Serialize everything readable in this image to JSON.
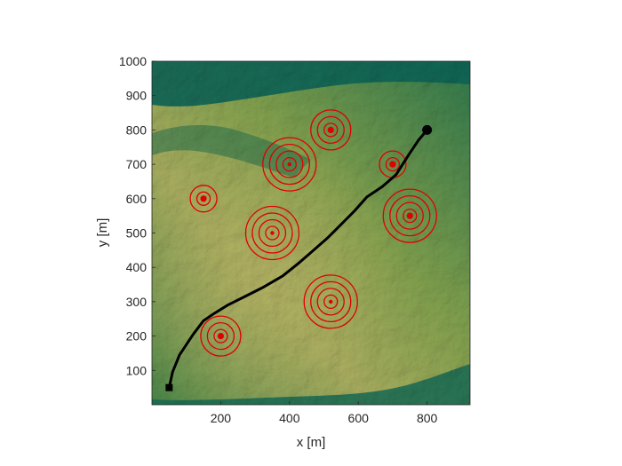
{
  "chart_data": {
    "type": "scatter",
    "title": "",
    "xlabel": "x [m]",
    "ylabel": "y [m]",
    "xlim": [
      0,
      925
    ],
    "ylim": [
      0,
      1000
    ],
    "x_ticks": [
      200,
      400,
      600,
      800
    ],
    "y_ticks": [
      100,
      200,
      300,
      400,
      500,
      600,
      700,
      800,
      900,
      1000
    ],
    "background": "terrain elevation shaded relief",
    "colors": {
      "terrain_low": "#0f7f6e",
      "terrain_mid": "#7fbf55",
      "terrain_high": "#e3e27e",
      "threat": "#e00000",
      "path": "#000000"
    },
    "threats": [
      {
        "x": 150,
        "y": 600,
        "rings": 2,
        "center_size": "large"
      },
      {
        "x": 200,
        "y": 200,
        "rings": 3,
        "center_size": "large"
      },
      {
        "x": 350,
        "y": 500,
        "rings": 4,
        "center_size": "small"
      },
      {
        "x": 400,
        "y": 700,
        "rings": 4,
        "center_size": "small"
      },
      {
        "x": 520,
        "y": 800,
        "rings": 3,
        "center_size": "large"
      },
      {
        "x": 520,
        "y": 300,
        "rings": 4,
        "center_size": "small"
      },
      {
        "x": 700,
        "y": 700,
        "rings": 2,
        "center_size": "large"
      },
      {
        "x": 750,
        "y": 550,
        "rings": 4,
        "center_size": "large"
      }
    ],
    "path": {
      "start": {
        "x": 50,
        "y": 50,
        "marker": "square"
      },
      "end": {
        "x": 800,
        "y": 800,
        "marker": "circle"
      },
      "points": [
        [
          50,
          50
        ],
        [
          60,
          95
        ],
        [
          80,
          145
        ],
        [
          100,
          175
        ],
        [
          120,
          205
        ],
        [
          150,
          245
        ],
        [
          180,
          265
        ],
        [
          220,
          290
        ],
        [
          270,
          315
        ],
        [
          320,
          340
        ],
        [
          380,
          375
        ],
        [
          430,
          415
        ],
        [
          470,
          450
        ],
        [
          510,
          485
        ],
        [
          550,
          525
        ],
        [
          590,
          565
        ],
        [
          625,
          605
        ],
        [
          670,
          635
        ],
        [
          710,
          670
        ],
        [
          745,
          725
        ],
        [
          775,
          770
        ],
        [
          800,
          800
        ]
      ]
    }
  }
}
